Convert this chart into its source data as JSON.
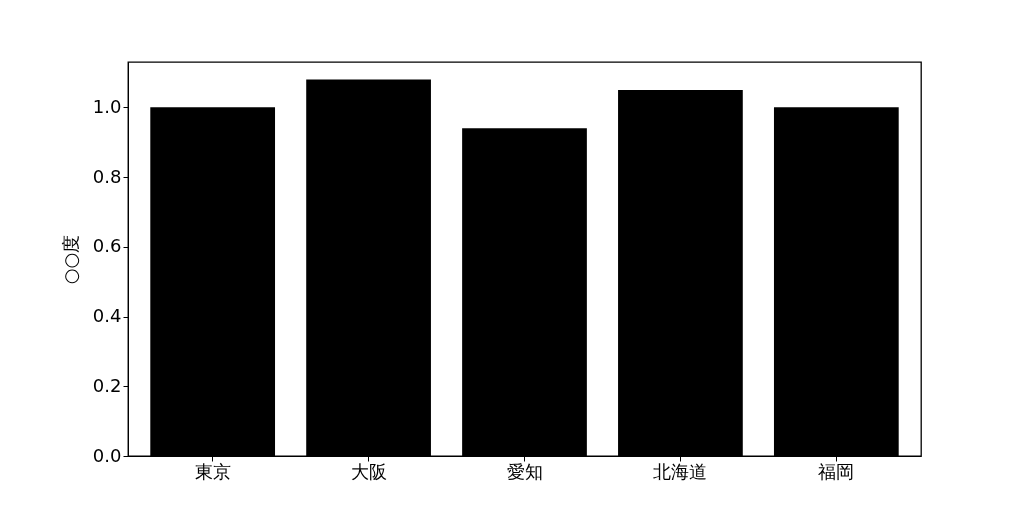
{
  "chart_data": {
    "type": "bar",
    "ylabel": "○○度",
    "categories": [
      "東京",
      "大阪",
      "愛知",
      "北海道",
      "福岡"
    ],
    "values": [
      1.0,
      1.08,
      0.94,
      1.05,
      1.0
    ],
    "color": "#000000",
    "ylim": [
      0,
      1.13
    ],
    "yticks": [
      {
        "value": 0,
        "label": "0.0"
      },
      0.2,
      0.4,
      0.6,
      0.8,
      {
        "value": 1,
        "label": "1.0"
      }
    ],
    "grid": false
  }
}
